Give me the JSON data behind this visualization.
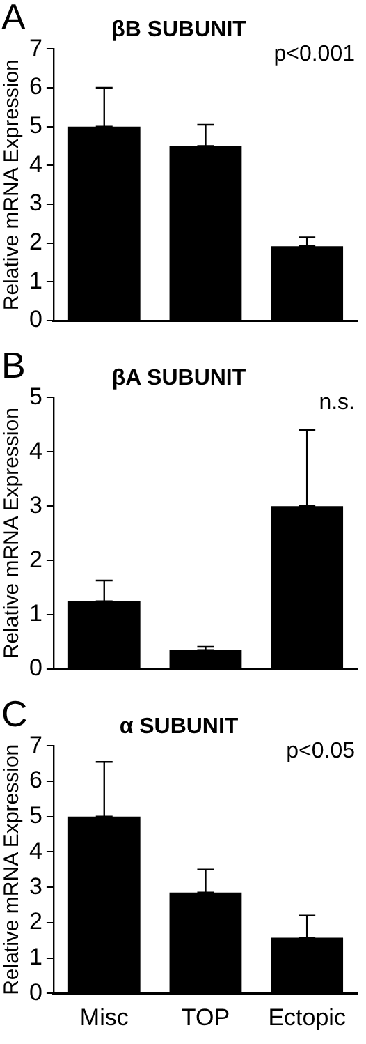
{
  "chart_data": [
    {
      "type": "bar",
      "title": "βB SUBUNIT",
      "ylabel": "Relative mRNA Expression",
      "categories": [
        null,
        null,
        null
      ],
      "values": [
        5,
        4.5,
        1.92
      ],
      "errors": [
        [
          5,
          6
        ],
        [
          4.5,
          5.05
        ],
        [
          1.92,
          2.15
        ]
      ],
      "color": "#000000",
      "ylim": [
        0,
        7
      ],
      "yticks": [
        0,
        1,
        2,
        3,
        4,
        5,
        6,
        7
      ],
      "tick_labels": "y",
      "grid": false,
      "annotations": [
        "A",
        "p<0.001"
      ]
    },
    {
      "type": "bar",
      "title": "βA SUBUNIT",
      "ylabel": "Relative mRNA Expression",
      "categories": [
        null,
        null,
        null
      ],
      "values": [
        1.25,
        0.35,
        3.0
      ],
      "errors": [
        [
          1.25,
          1.63
        ],
        [
          0.35,
          0.41
        ],
        [
          3.0,
          4.4
        ]
      ],
      "color": "#000000",
      "ylim": [
        0,
        5
      ],
      "yticks": [
        0,
        1,
        2,
        3,
        4,
        5
      ],
      "tick_labels": "y",
      "grid": false,
      "annotations": [
        "B",
        "n.s."
      ]
    },
    {
      "type": "bar",
      "title": "α SUBUNIT",
      "ylabel": "Relative mRNA Expression",
      "categories": [
        "Misc",
        "TOP",
        "Ectopic"
      ],
      "values": [
        5.0,
        2.85,
        1.57
      ],
      "errors": [
        [
          5.0,
          6.55
        ],
        [
          2.85,
          3.5
        ],
        [
          1.57,
          2.2
        ]
      ],
      "color": "#000000",
      "ylim": [
        0,
        7
      ],
      "yticks": [
        0,
        1,
        2,
        3,
        4,
        5,
        6,
        7
      ],
      "grid": false,
      "annotations": [
        "C",
        "p<0.05"
      ]
    }
  ]
}
